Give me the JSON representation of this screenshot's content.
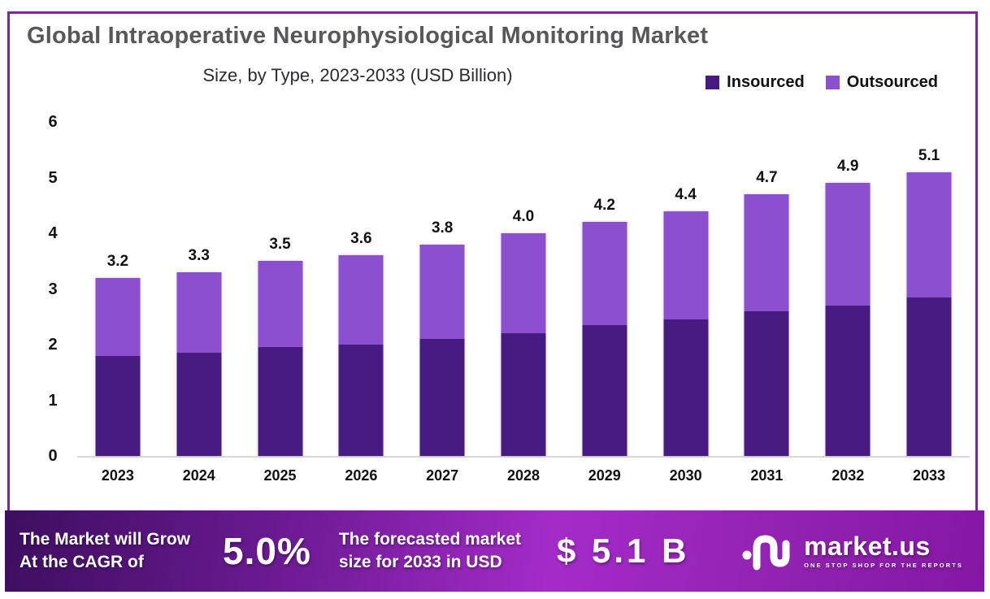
{
  "title": "Global Intraoperative Neurophysiological Monitoring Market",
  "subtitle": "Size, by Type, 2023-2033 (USD Billion)",
  "legend": [
    {
      "label": "Insourced",
      "color": "#471B82"
    },
    {
      "label": "Outsourced",
      "color": "#8C4FD0"
    }
  ],
  "chart_data": {
    "type": "bar",
    "stacked": true,
    "title": "Global Intraoperative Neurophysiological Monitoring Market Size, by Type, 2023-2033 (USD Billion)",
    "categories": [
      "2023",
      "2024",
      "2025",
      "2026",
      "2027",
      "2028",
      "2029",
      "2030",
      "2031",
      "2032",
      "2033"
    ],
    "series": [
      {
        "name": "Insourced",
        "color": "#471B82",
        "values": [
          1.8,
          1.85,
          1.95,
          2.0,
          2.1,
          2.2,
          2.35,
          2.45,
          2.6,
          2.7,
          2.85
        ]
      },
      {
        "name": "Outsourced",
        "color": "#8C4FD0",
        "values": [
          1.4,
          1.45,
          1.55,
          1.6,
          1.7,
          1.8,
          1.85,
          1.95,
          2.1,
          2.2,
          2.25
        ]
      }
    ],
    "totals": [
      3.2,
      3.3,
      3.5,
      3.6,
      3.8,
      4.0,
      4.2,
      4.4,
      4.7,
      4.9,
      5.1
    ],
    "total_labels": [
      "3.2",
      "3.3",
      "3.5",
      "3.6",
      "3.8",
      "4.0",
      "4.2",
      "4.4",
      "4.7",
      "4.9",
      "5.1"
    ],
    "xlabel": "",
    "ylabel": "",
    "ylim": [
      0,
      6
    ],
    "yticks": [
      0,
      1,
      2,
      3,
      4,
      5,
      6
    ],
    "grid": false,
    "legend_position": "top-right"
  },
  "footer": {
    "cagr_line1": "The Market will Grow",
    "cagr_line2": "At the CAGR of",
    "cagr_value": "5.0%",
    "forecast_line1": "The forecasted market",
    "forecast_line2": "size for 2033 in USD",
    "forecast_value": "$ 5.1 B",
    "brand_name": "market.us",
    "brand_tagline": "ONE STOP SHOP FOR THE REPORTS"
  },
  "colors": {
    "title_text": "#58585A",
    "subtitle_text": "#2B2B30",
    "frame_border": "#7C26A2",
    "insourced": "#471B82",
    "outsourced": "#8C4FD0",
    "axis_line": "#D8D8D8",
    "footer_gradient_start": "#3D0E5F",
    "footer_gradient_mid": "#A42BC8",
    "footer_gradient_end": "#8417A3",
    "footer_text": "#FFFFFF"
  }
}
